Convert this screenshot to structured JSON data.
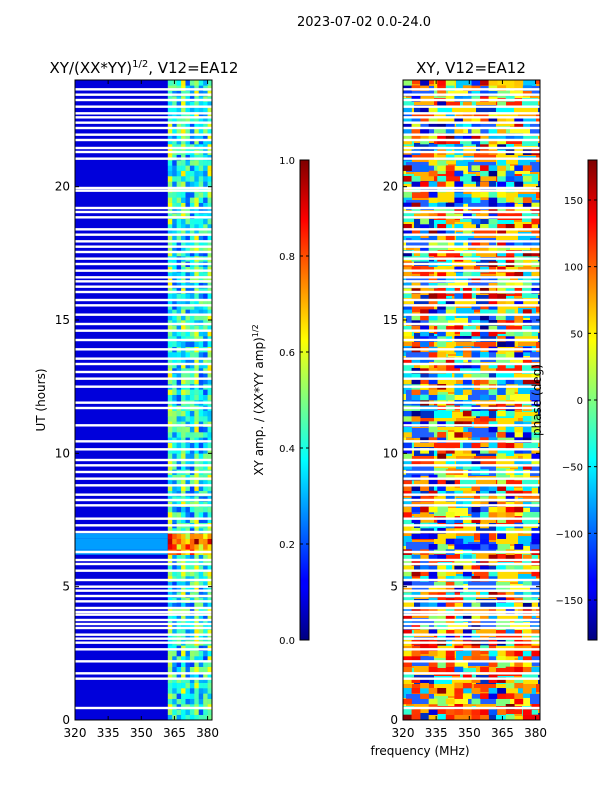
{
  "chart_data": {
    "type": "heatmap",
    "suptitle": "2023-07-02 0.0-24.0",
    "shared_xlabel": "frequency (MHz)",
    "panels": [
      {
        "id": "amp",
        "title_main": "XY/(XX*YY)",
        "title_sup": "1/2",
        "title_suffix": ", V12=EA12",
        "ylabel": "UT (hours)",
        "xlim": [
          320,
          382
        ],
        "ylim": [
          0,
          24
        ],
        "xticks": [
          320,
          335,
          350,
          365,
          380
        ],
        "yticks": [
          0,
          5,
          10,
          15,
          20
        ],
        "colorbar": {
          "label_main": "XY amp. / (XX*YY amp)",
          "label_sup": "1/2",
          "range": [
            0.0,
            1.0
          ],
          "ticks": [
            "0.0",
            "0.2",
            "0.4",
            "0.6",
            "0.8",
            "1.0"
          ],
          "tick_values": [
            0.0,
            0.2,
            0.4,
            0.6,
            0.8,
            1.0
          ]
        }
      },
      {
        "id": "phase",
        "title": "XY, V12=EA12",
        "xlim": [
          320,
          382
        ],
        "ylim": [
          0,
          24
        ],
        "xticks": [
          320,
          335,
          350,
          365,
          380
        ],
        "yticks": [
          0,
          5,
          10,
          15,
          20
        ],
        "colorbar": {
          "label": "phase (deg)",
          "range": [
            -180,
            180
          ],
          "ticks": [
            "−150",
            "−100",
            "−50",
            "0",
            "50",
            "100",
            "150"
          ],
          "tick_values": [
            -150,
            -100,
            -50,
            0,
            50,
            100,
            150
          ]
        }
      }
    ],
    "flagged_ut_rows": [
      0.45,
      1.55,
      1.75,
      2.2,
      2.65,
      2.9,
      3.05,
      3.2,
      3.45,
      3.6,
      3.75,
      3.95,
      4.05,
      4.2,
      4.45,
      4.65,
      4.85,
      5.0,
      5.25,
      5.6,
      5.85,
      6.0,
      6.3,
      7.05,
      7.3,
      7.55,
      8.05,
      8.25,
      8.45,
      8.8,
      9.05,
      9.3,
      9.55,
      9.75,
      10.15,
      10.45,
      11.05,
      11.7,
      11.9,
      12.5,
      12.8,
      13.05,
      13.35,
      13.55,
      13.9,
      14.25,
      14.6,
      14.85,
      15.2,
      15.55,
      15.75,
      16.05,
      16.25,
      16.45,
      16.6,
      16.85,
      17.1,
      17.3,
      17.55,
      17.75,
      17.95,
      18.2,
      18.4,
      18.85,
      19.05,
      19.2,
      19.85,
      19.95,
      21.05,
      21.3,
      21.45,
      21.75,
      21.95,
      22.2,
      22.4,
      22.6,
      22.75,
      23.0,
      23.25,
      23.45,
      23.65
    ],
    "notes": "Amplitude is low (~0.05-0.1) below 362 MHz and patchy 0.2-0.7 above it, peaking near 0.9 around UT 6.5. Phase is highly variable across the full range."
  }
}
